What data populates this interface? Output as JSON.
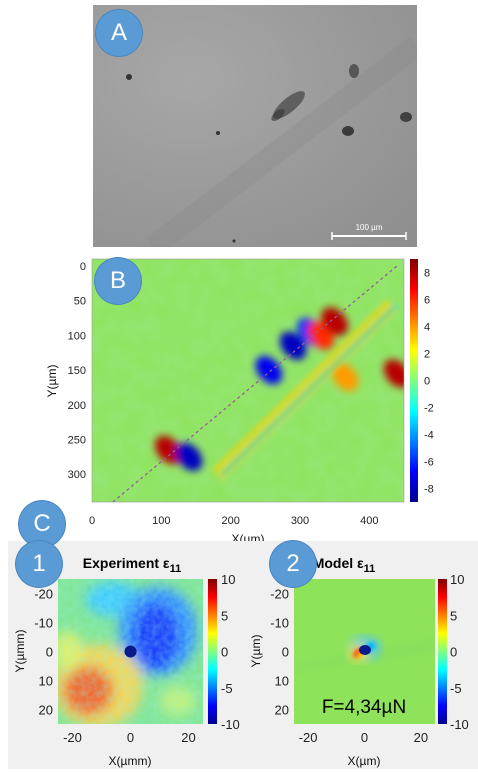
{
  "panel_a": {
    "badge": "A",
    "scale_bar_label": "100 µm"
  },
  "panel_b": {
    "badge": "B"
  },
  "panel_c": {
    "badge": "C",
    "sub1_badge": "1",
    "sub2_badge": "2",
    "force_label": "F=4,34µN"
  },
  "colors": {
    "badge": "#5b9bd5",
    "subplot_bg": "#f0f0f0",
    "field_green": "#8ee35a"
  },
  "chart_data": [
    {
      "type": "heatmap",
      "panel": "B",
      "title": "",
      "xlabel": "X(µm)",
      "ylabel": "Y(µm)",
      "xlim": [
        0,
        450
      ],
      "ylim": [
        340,
        -10
      ],
      "x_ticks": [
        0,
        100,
        200,
        300,
        400
      ],
      "y_ticks": [
        0,
        50,
        100,
        150,
        200,
        250,
        300
      ],
      "colorbar": {
        "min": -9,
        "max": 9,
        "ticks": [
          8,
          6,
          4,
          2,
          0,
          -2,
          -4,
          -6,
          -8
        ],
        "colormap": "jet"
      },
      "diagonal_line": {
        "from": [
          30,
          340
        ],
        "to": [
          440,
          0
        ],
        "style": "dashed"
      },
      "features": [
        {
          "x": 110,
          "y": 265,
          "value": 8
        },
        {
          "x": 140,
          "y": 275,
          "value": -8
        },
        {
          "x": 255,
          "y": 150,
          "value": -7
        },
        {
          "x": 290,
          "y": 115,
          "value": -8
        },
        {
          "x": 315,
          "y": 95,
          "value": -6
        },
        {
          "x": 330,
          "y": 100,
          "value": 6
        },
        {
          "x": 350,
          "y": 80,
          "value": 8
        },
        {
          "x": 365,
          "y": 160,
          "value": 4
        },
        {
          "x": 440,
          "y": 155,
          "value": 8
        }
      ]
    },
    {
      "type": "heatmap",
      "panel": "C1",
      "title": "Experiment ε₁₁",
      "title_base": "Experiment ε",
      "title_sub": "11",
      "xlabel": "X(µmm)",
      "ylabel": "Y(µmm)",
      "xlim": [
        -25,
        25
      ],
      "ylim": [
        -25,
        25
      ],
      "x_ticks": [
        -20,
        0,
        20
      ],
      "y_ticks": [
        -20,
        -10,
        0,
        10,
        20
      ],
      "colorbar": {
        "min": -10,
        "max": 10,
        "ticks": [
          10,
          5,
          0,
          -5,
          -10
        ],
        "colormap": "jet"
      },
      "marker": {
        "x": 0,
        "y": 0
      }
    },
    {
      "type": "heatmap",
      "panel": "C2",
      "title": "Model ε₁₁",
      "title_base": "Model ε",
      "title_sub": "11",
      "xlabel": "X(µm)",
      "ylabel": "Y(µm)",
      "xlim": [
        -25,
        25
      ],
      "ylim": [
        -25,
        25
      ],
      "x_ticks": [
        -20,
        0,
        20
      ],
      "y_ticks": [
        -20,
        -10,
        0,
        10,
        20
      ],
      "colorbar": {
        "min": -10,
        "max": 10,
        "ticks": [
          10,
          5,
          0,
          -5,
          -10
        ],
        "colormap": "jet"
      },
      "annotation": "F=4,34µN"
    }
  ]
}
